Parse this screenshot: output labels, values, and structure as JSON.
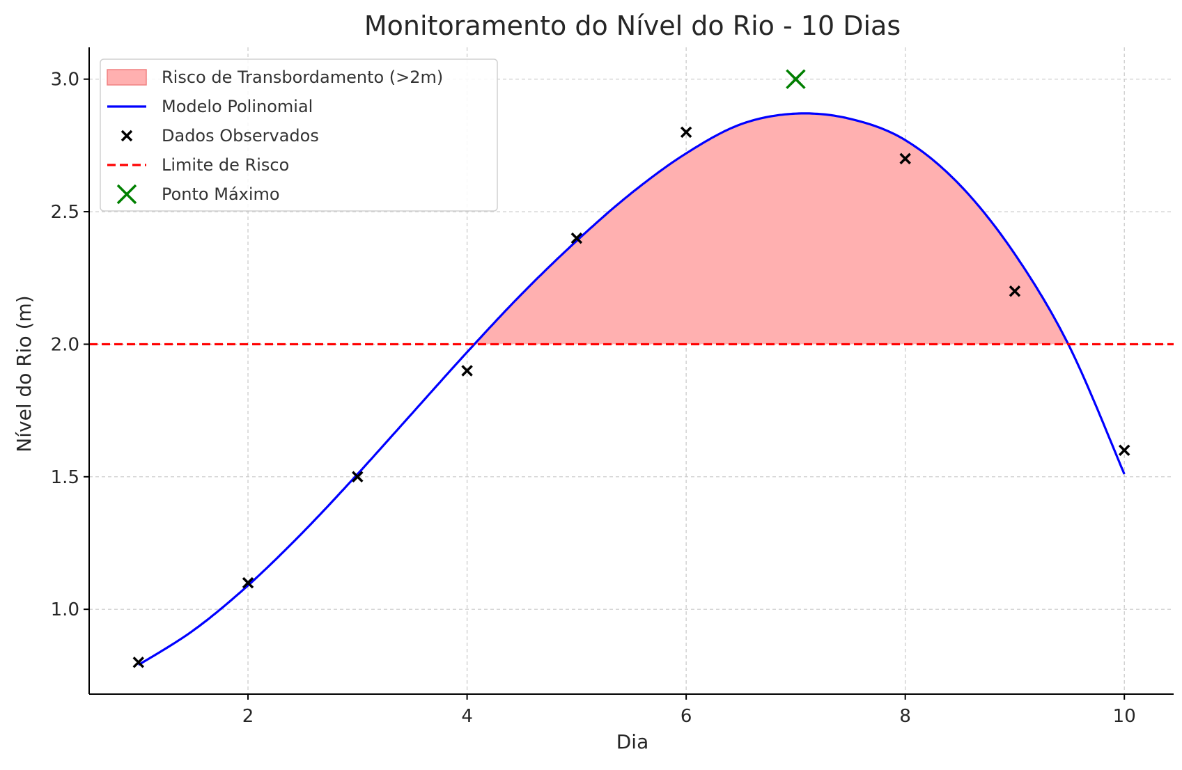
{
  "chart_data": {
    "type": "line",
    "title": "Monitoramento do Nível do Rio - 10 Dias",
    "xlabel": "Dia",
    "ylabel": "Nível do Rio (m)",
    "xlim": [
      0.55,
      10.45
    ],
    "ylim": [
      0.68,
      3.12
    ],
    "x_ticks": [
      2,
      4,
      6,
      8,
      10
    ],
    "x_tick_labels": [
      "2",
      "4",
      "6",
      "8",
      "10"
    ],
    "y_ticks": [
      1.0,
      1.5,
      2.0,
      2.5,
      3.0
    ],
    "y_tick_labels": [
      "1.0",
      "1.5",
      "2.0",
      "2.5",
      "3.0"
    ],
    "grid": true,
    "legend_position": "top-left",
    "legend": [
      {
        "label": "Risco de Transbordamento (>2m)",
        "kind": "patch",
        "color": "#ffb0b0",
        "edge": "#f08080"
      },
      {
        "label": "Modelo Polinomial",
        "kind": "line",
        "color": "#0000ff"
      },
      {
        "label": "Dados Observados",
        "kind": "marker-x",
        "color": "#000000"
      },
      {
        "label": "Limite de Risco",
        "kind": "dashed-line",
        "color": "#ff0000"
      },
      {
        "label": "Ponto Máximo",
        "kind": "marker-x-large",
        "color": "#008000"
      }
    ],
    "series": [
      {
        "name": "Dados Observados",
        "type": "scatter",
        "color": "#000000",
        "x": [
          1,
          2,
          3,
          4,
          5,
          6,
          7,
          8,
          9,
          10
        ],
        "y": [
          0.8,
          1.1,
          1.5,
          1.9,
          2.4,
          2.8,
          3.0,
          2.7,
          2.2,
          1.6
        ]
      },
      {
        "name": "Modelo Polinomial",
        "type": "line",
        "color": "#0000ff",
        "x": [
          1,
          1.5,
          2,
          2.5,
          3,
          3.5,
          4,
          4.5,
          5,
          5.5,
          6,
          6.5,
          7,
          7.5,
          8,
          8.5,
          9,
          9.5,
          10
        ],
        "y": [
          0.79,
          0.92,
          1.09,
          1.29,
          1.51,
          1.74,
          1.97,
          2.19,
          2.39,
          2.57,
          2.72,
          2.83,
          2.87,
          2.85,
          2.77,
          2.6,
          2.34,
          1.99,
          1.51
        ]
      },
      {
        "name": "Limite de Risco",
        "type": "hline",
        "color": "#ff0000",
        "y": 2.0
      },
      {
        "name": "Risco de Transbordamento (>2m)",
        "type": "fill-between",
        "color": "#ffb0b0",
        "threshold": 2.0
      },
      {
        "name": "Ponto Máximo",
        "type": "point",
        "color": "#008000",
        "x": 7,
        "y": 3.0
      }
    ]
  }
}
